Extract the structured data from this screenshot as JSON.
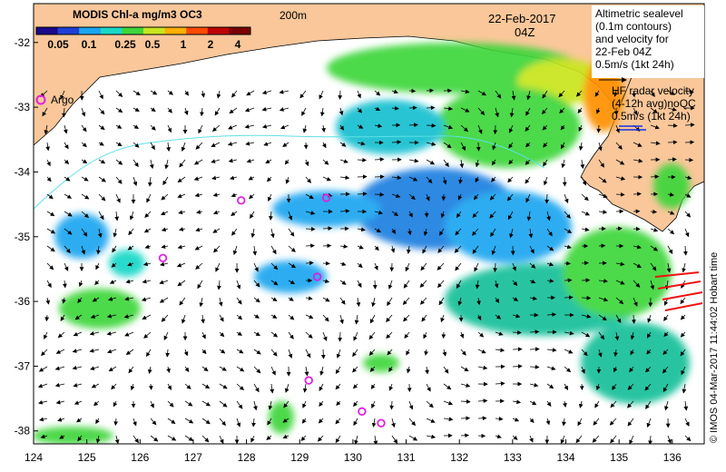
{
  "colorbar": {
    "title": "MODIS Chl-a mg/m3 OC3",
    "ticks": [
      "0.05",
      "0.1",
      "0.25",
      "0.5",
      "1",
      "2",
      "4"
    ],
    "colors": [
      "#1a0a8c",
      "#1f3fd6",
      "#1aa6f0",
      "#19d8c8",
      "#3ed63a",
      "#c8e61e",
      "#ffb000",
      "#ff4a00",
      "#c00000",
      "#7a0000"
    ]
  },
  "date_label": {
    "line1": "22-Feb-2017",
    "line2": "04Z"
  },
  "isobath_label": "200m",
  "legend_altimetry": {
    "lines": [
      "Altimetric sealevel",
      "(0.1m contours)",
      "and velocity for",
      "22-Feb 04Z",
      "0.5m/s (1kt 24h)"
    ]
  },
  "legend_radar": {
    "lines": [
      "HF radar velocity",
      "(4-12h avg)noQC",
      "0.5m/s (1kt 24h)"
    ]
  },
  "argo_label": "Argo",
  "credit": "© IMOS 04-Mar-2017 11:44:02 Hobart time",
  "axes": {
    "x_ticks": [
      "124",
      "125",
      "126",
      "127",
      "128",
      "129",
      "130",
      "131",
      "132",
      "133",
      "134",
      "135",
      "136"
    ],
    "y_ticks": [
      "-32",
      "-33",
      "-34",
      "-35",
      "-36",
      "-37",
      "-38"
    ],
    "x_range": [
      124,
      136.6
    ],
    "y_range": [
      -31.4,
      -38.2
    ]
  },
  "argo_floats": [
    {
      "lon": 126.43,
      "lat": -35.33
    },
    {
      "lon": 127.9,
      "lat": -34.44
    },
    {
      "lon": 129.5,
      "lat": -34.4
    },
    {
      "lon": 129.33,
      "lat": -35.62
    },
    {
      "lon": 129.17,
      "lat": -37.22
    },
    {
      "lon": 130.17,
      "lat": -37.7
    },
    {
      "lon": 130.53,
      "lat": -37.88
    }
  ],
  "colors": {
    "land": "#f9c79a",
    "argo": "#e020e0",
    "radar_far": "#ee1111",
    "radar_legend": "#1a2ee0",
    "contour": "#5ee0e8"
  }
}
